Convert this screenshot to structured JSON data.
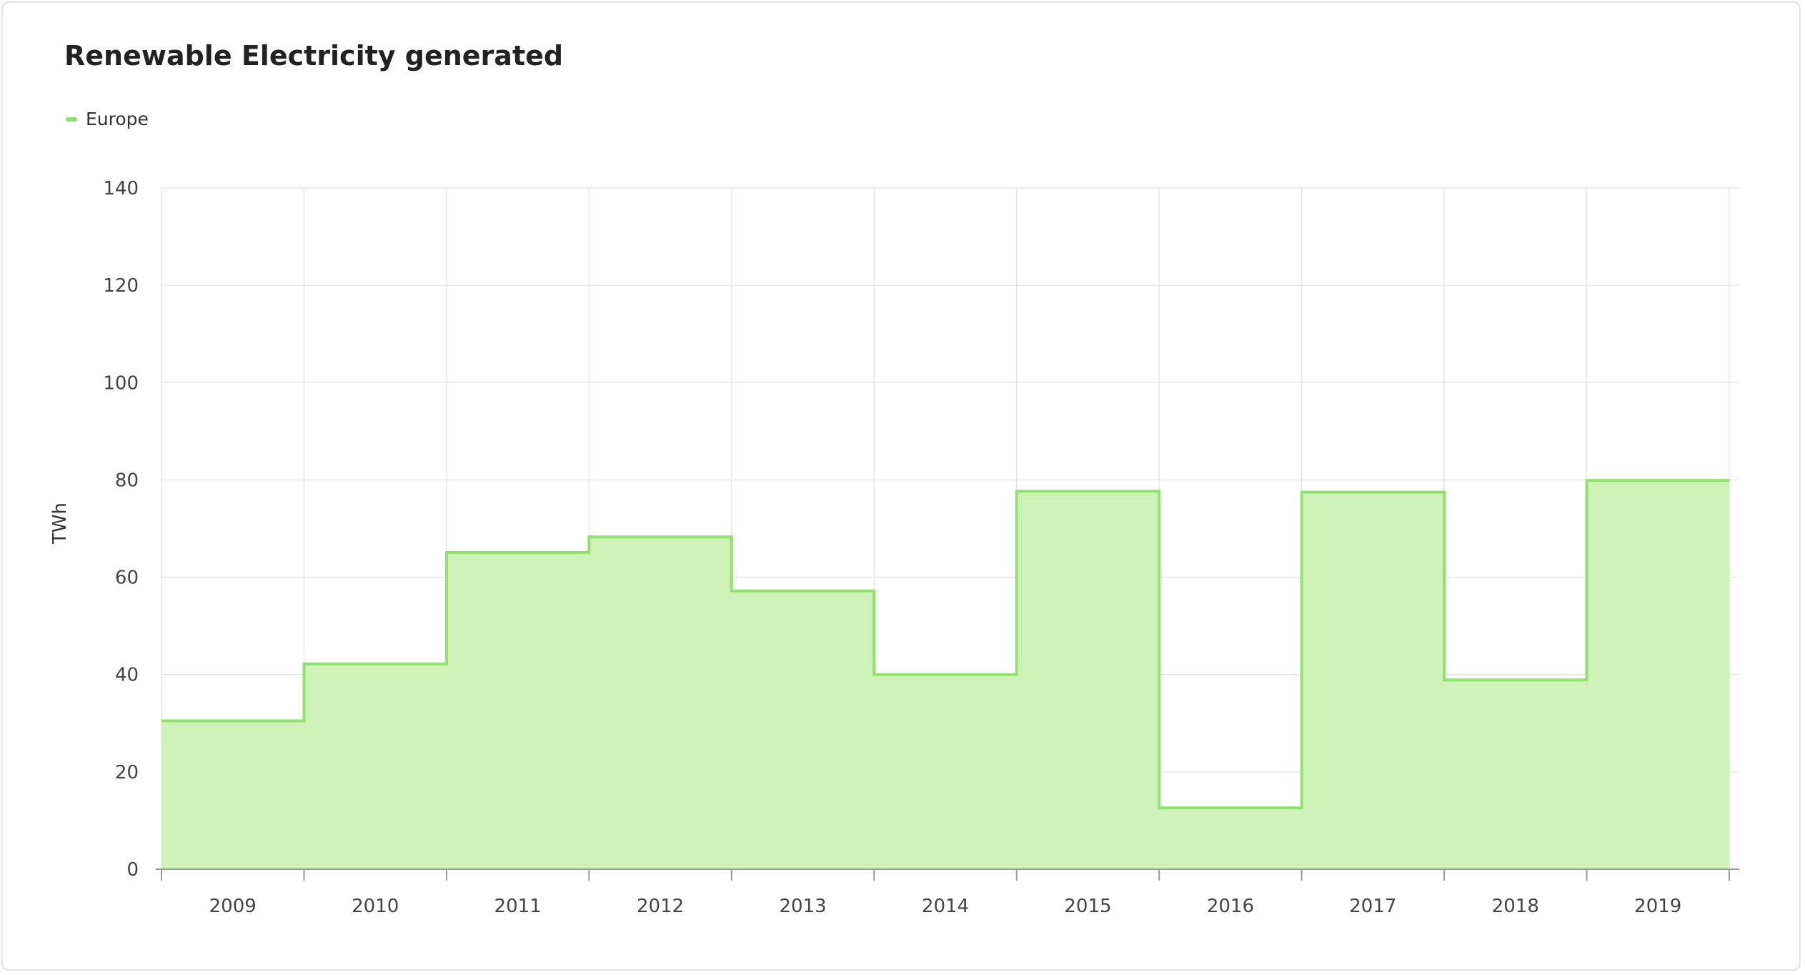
{
  "chart_data": {
    "type": "area",
    "title": "Renewable Electricity generated",
    "xlabel": "",
    "ylabel": "TWh",
    "categories": [
      "2009",
      "2010",
      "2011",
      "2012",
      "2013",
      "2014",
      "2015",
      "2016",
      "2017",
      "2018",
      "2019"
    ],
    "series": [
      {
        "name": "Europe",
        "values": [
          30.5,
          42.2,
          65.1,
          68.3,
          57.2,
          40.0,
          77.7,
          12.6,
          77.5,
          38.9,
          79.9
        ],
        "color": "#8fe36d",
        "fill": "#cef2b8"
      }
    ],
    "yticks": [
      0,
      20,
      40,
      60,
      80,
      100,
      120,
      140
    ],
    "ylim": [
      0,
      140
    ],
    "step": true,
    "grid": true,
    "legend_position": "top-left"
  }
}
